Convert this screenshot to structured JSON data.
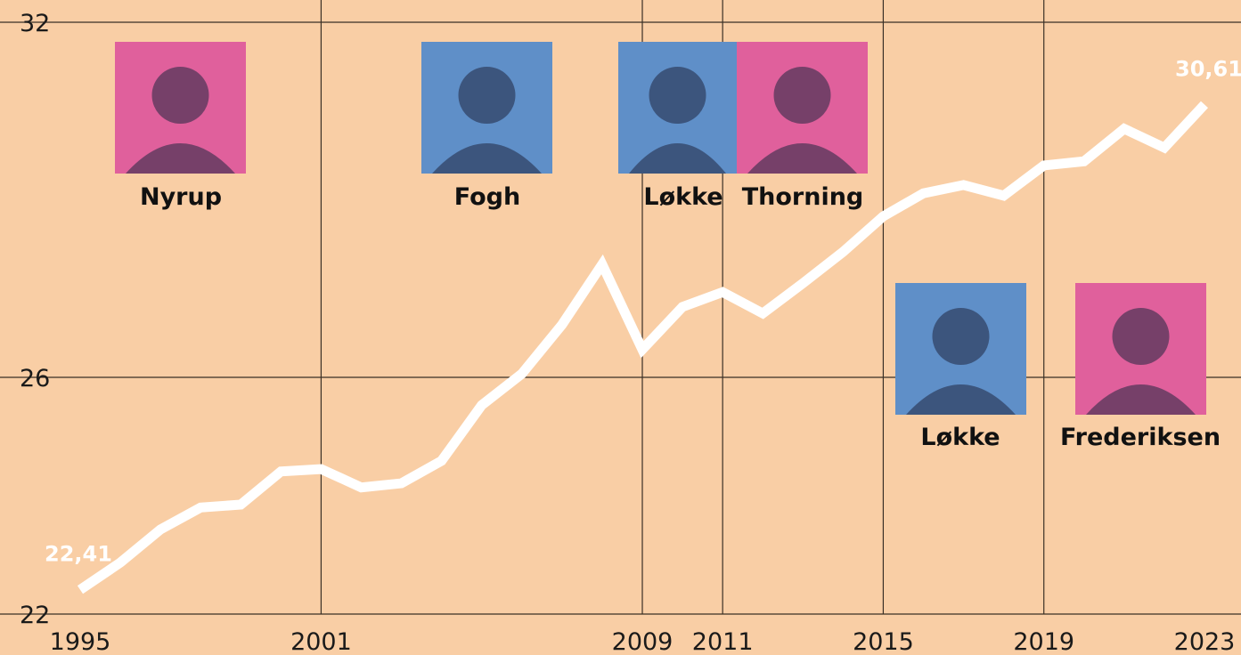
{
  "chart_data": {
    "type": "line",
    "x": [
      1995,
      1996,
      1997,
      1998,
      1999,
      2000,
      2001,
      2002,
      2003,
      2004,
      2005,
      2006,
      2007,
      2008,
      2009,
      2010,
      2011,
      2012,
      2013,
      2014,
      2015,
      2016,
      2017,
      2018,
      2019,
      2020,
      2021,
      2022,
      2023
    ],
    "values": [
      22.41,
      22.87,
      23.43,
      23.8,
      23.85,
      24.41,
      24.45,
      24.14,
      24.21,
      24.59,
      25.53,
      26.06,
      26.89,
      27.91,
      26.47,
      27.19,
      27.44,
      27.08,
      27.59,
      28.12,
      28.72,
      29.11,
      29.25,
      29.07,
      29.58,
      29.65,
      30.2,
      29.88,
      30.61
    ],
    "value_labels": [
      "22,41",
      null,
      null,
      null,
      null,
      null,
      null,
      null,
      null,
      null,
      null,
      null,
      null,
      null,
      null,
      null,
      null,
      null,
      null,
      null,
      null,
      null,
      null,
      null,
      null,
      null,
      null,
      null,
      "30,61"
    ],
    "color": "#ffffff",
    "xlim": [
      1995,
      2023
    ],
    "xticks": [
      1995,
      2001,
      2009,
      2011,
      2015,
      2019,
      2023
    ],
    "ylim": [
      22,
      32
    ],
    "yticks": [
      22,
      26,
      32
    ],
    "grid": true,
    "annotations": [
      {
        "label": "Nyrup"
      },
      {
        "label": "Fogh"
      },
      {
        "label": "Løkke"
      },
      {
        "label": "Thorning"
      },
      {
        "label": "Løkke"
      },
      {
        "label": "Frederiksen"
      }
    ]
  }
}
